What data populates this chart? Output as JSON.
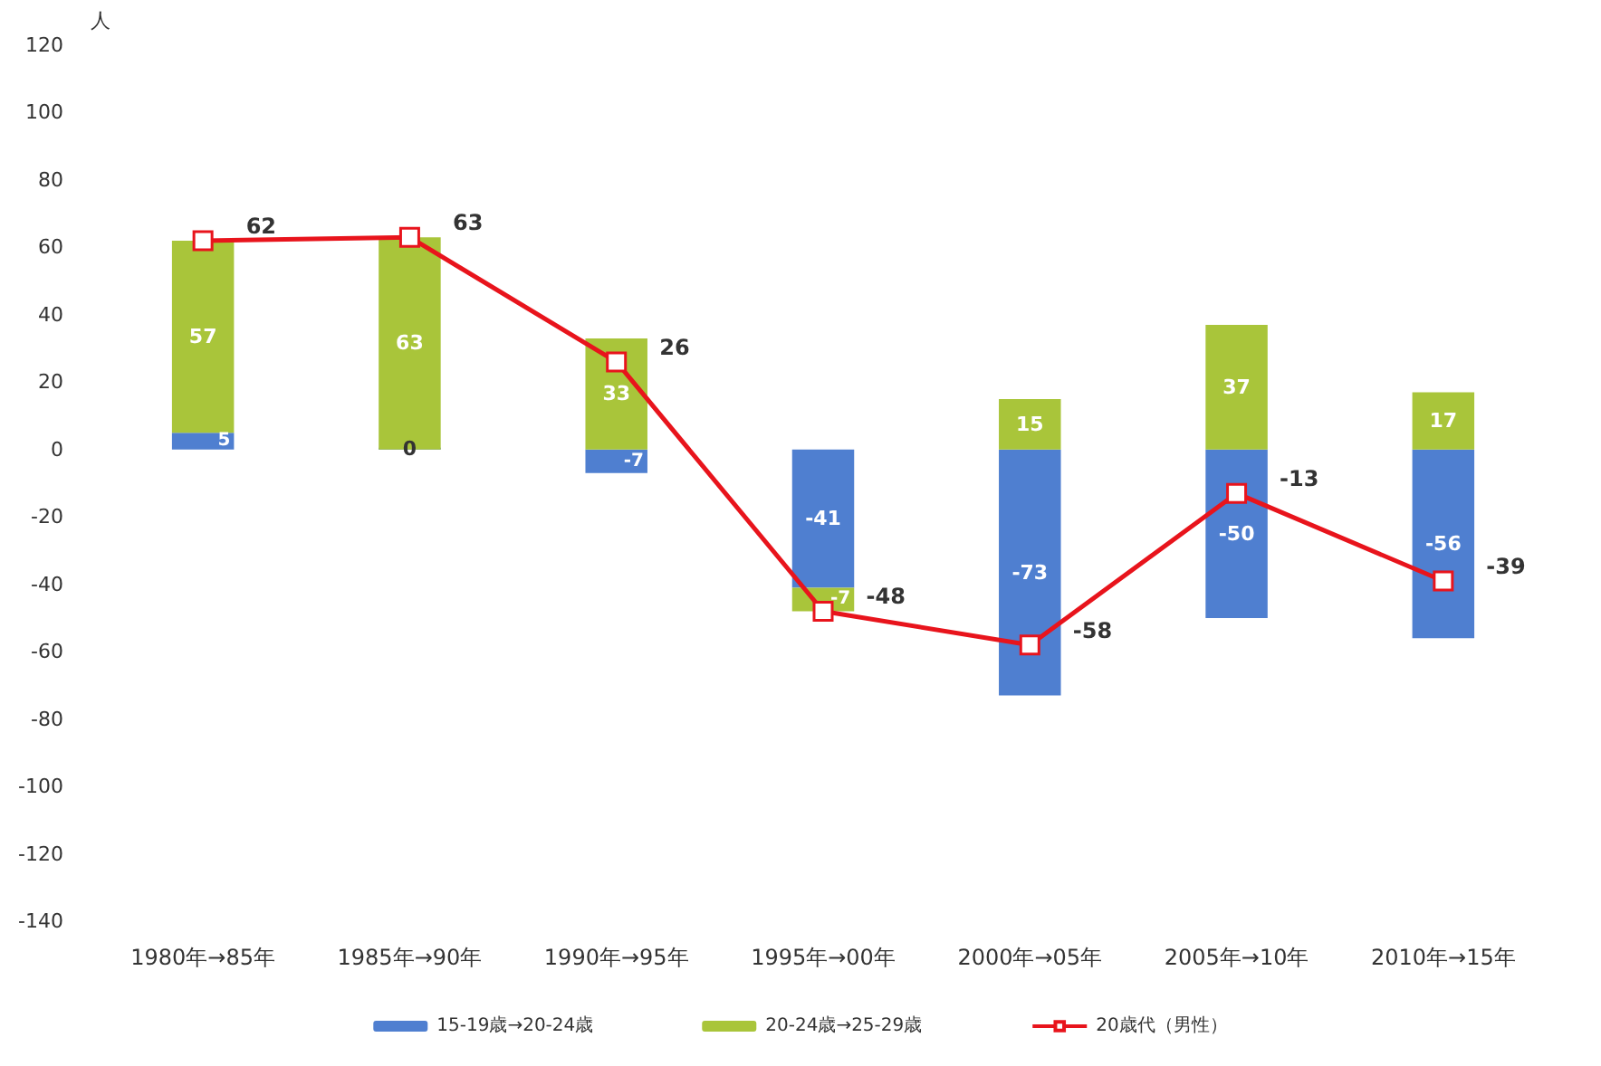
{
  "chart_data": {
    "type": "bar",
    "stacked": true,
    "ylabel": "人",
    "categories": [
      "1980年→85年",
      "1985年→90年",
      "1990年→95年",
      "1995年→00年",
      "2000年→05年",
      "2005年→10年",
      "2010年→15年"
    ],
    "series": [
      {
        "name": "15-19歳→20-24歳",
        "color": "#4f7fd0",
        "values": [
          5,
          0,
          -7,
          -41,
          -73,
          -50,
          -56
        ]
      },
      {
        "name": "20-24歳→25-29歳",
        "color": "#a9c53a",
        "values": [
          57,
          63,
          33,
          -7,
          15,
          37,
          17
        ]
      },
      {
        "name": "20歳代（男性）",
        "type": "line",
        "color": "#e8141c",
        "marker": "square",
        "values": [
          62,
          63,
          26,
          -48,
          -58,
          -13,
          -39
        ]
      }
    ],
    "ylim": [
      -140,
      120
    ],
    "yticks": [
      -140,
      -120,
      -100,
      -80,
      -60,
      -40,
      -20,
      0,
      20,
      40,
      60,
      80,
      100,
      120
    ],
    "grid": false,
    "legend": "bottom",
    "data_labels": true
  }
}
